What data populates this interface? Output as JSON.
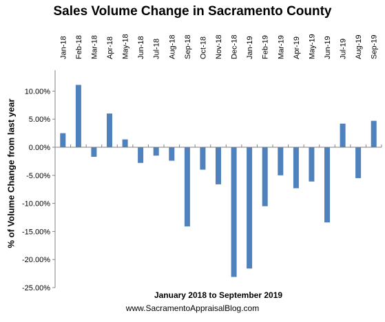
{
  "chart_data": {
    "type": "bar",
    "title": "Sales Volume Change in Sacramento County",
    "xlabel": "January  2018 to September 2019",
    "ylabel": "% of Volume Change from last year",
    "categories": [
      "Jan-18",
      "Feb-18",
      "Mar-18",
      "Apr-18",
      "May-18",
      "Jun-18",
      "Jul-18",
      "Aug-18",
      "Sep-18",
      "Oct-18",
      "Nov-18",
      "Dec-18",
      "Jan-19",
      "Feb-19",
      "Mar-19",
      "Apr-19",
      "May-19",
      "Jun-19",
      "Jul-19",
      "Aug-19",
      "Sep-19"
    ],
    "values": [
      2.5,
      11.1,
      -1.7,
      6.0,
      1.4,
      -2.8,
      -1.5,
      -2.4,
      -14.1,
      -4.0,
      -6.6,
      -23.1,
      -21.6,
      -10.5,
      -5.0,
      -7.3,
      -6.1,
      -13.4,
      4.2,
      -5.5,
      4.7
    ],
    "ylim": [
      -25,
      12.5
    ],
    "yticks": [
      10,
      5,
      0,
      -5,
      -10,
      -15,
      -20,
      -25
    ],
    "ytick_labels": [
      "10.00%",
      "5.00%",
      "0.00%",
      "-5.00%",
      "-10.00%",
      "-15.00%",
      "-20.00%",
      "-25.00%"
    ],
    "bar_color": "#4F81BD",
    "grid": false,
    "legend": "none"
  },
  "footer": "www.SacramentoAppraisalBlog.com"
}
